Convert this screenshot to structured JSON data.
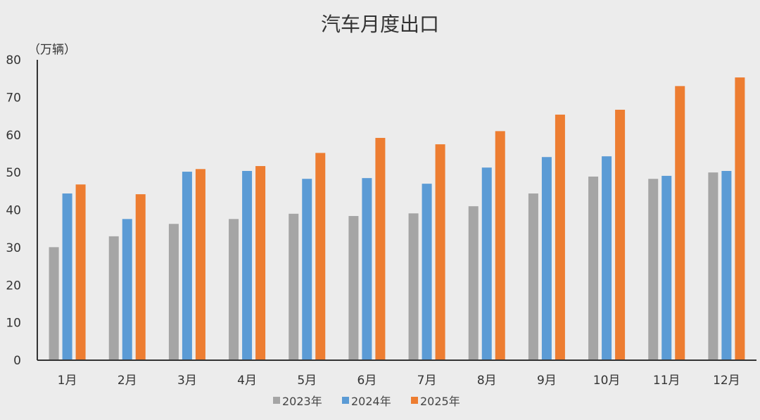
{
  "chart_data": {
    "type": "bar",
    "title": "汽车月度出口",
    "ylabel": "（万辆）",
    "xlabel": "",
    "ylim": [
      0,
      80
    ],
    "yticks": [
      0,
      10,
      20,
      30,
      40,
      50,
      60,
      70,
      80
    ],
    "grid": false,
    "legend_position": "bottom",
    "categories": [
      "1月",
      "2月",
      "3月",
      "4月",
      "5月",
      "6月",
      "7月",
      "8月",
      "9月",
      "10月",
      "11月",
      "12月"
    ],
    "series": [
      {
        "name": "2023年",
        "color": "#a5a5a5",
        "values": [
          30.1,
          33.0,
          36.3,
          37.6,
          39.0,
          38.4,
          39.1,
          41.0,
          44.4,
          48.9,
          48.3,
          50.0
        ]
      },
      {
        "name": "2024年",
        "color": "#5b9bd5",
        "values": [
          44.4,
          37.6,
          50.2,
          50.4,
          48.3,
          48.5,
          47.0,
          51.3,
          54.1,
          54.3,
          49.1,
          50.4
        ]
      },
      {
        "name": "2025年",
        "color": "#ed7d31",
        "values": [
          46.8,
          44.2,
          50.9,
          51.7,
          55.2,
          59.2,
          57.5,
          61.0,
          65.4,
          66.7,
          73.0,
          75.3
        ]
      }
    ]
  }
}
